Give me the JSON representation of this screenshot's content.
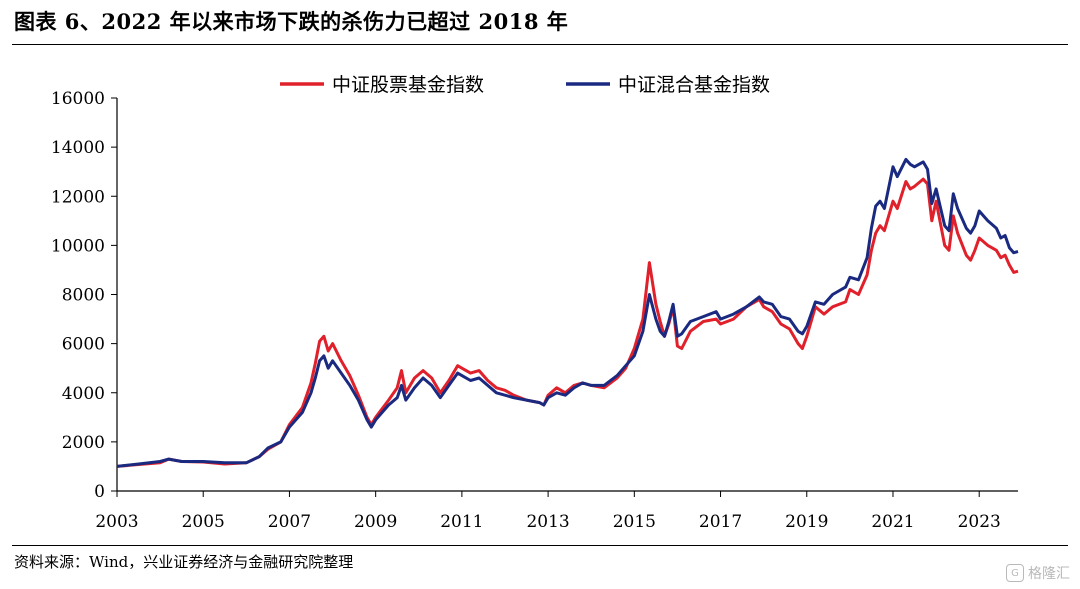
{
  "header": {
    "title": "图表 6、2022 年以来市场下跌的杀伤力已超过 2018 年"
  },
  "footer": {
    "source": "资料来源：Wind，兴业证券经济与金融研究院整理",
    "watermark": "格隆汇"
  },
  "colors": {
    "stock_fund": "#e0202a",
    "mixed_fund": "#1a2a80"
  },
  "chart_data": {
    "type": "line",
    "title": "",
    "xlabel": "",
    "ylabel": "",
    "xlim": [
      2003.0,
      2023.9
    ],
    "ylim": [
      0,
      16000
    ],
    "x_ticks": [
      "2003",
      "2005",
      "2007",
      "2009",
      "2011",
      "2013",
      "2015",
      "2017",
      "2019",
      "2021",
      "2023"
    ],
    "y_ticks": [
      "0",
      "2000",
      "4000",
      "6000",
      "8000",
      "10000",
      "12000",
      "14000",
      "16000"
    ],
    "grid": false,
    "legend_position": "top",
    "series": [
      {
        "name": "中证股票基金指数",
        "color": "#e0202a",
        "points": [
          [
            2003.0,
            1000
          ],
          [
            2003.5,
            1080
          ],
          [
            2004.0,
            1150
          ],
          [
            2004.2,
            1300
          ],
          [
            2004.5,
            1200
          ],
          [
            2005.0,
            1180
          ],
          [
            2005.5,
            1100
          ],
          [
            2006.0,
            1150
          ],
          [
            2006.3,
            1400
          ],
          [
            2006.5,
            1700
          ],
          [
            2006.8,
            2000
          ],
          [
            2007.0,
            2700
          ],
          [
            2007.3,
            3400
          ],
          [
            2007.5,
            4400
          ],
          [
            2007.6,
            5200
          ],
          [
            2007.7,
            6100
          ],
          [
            2007.8,
            6300
          ],
          [
            2007.9,
            5700
          ],
          [
            2008.0,
            6000
          ],
          [
            2008.2,
            5300
          ],
          [
            2008.4,
            4700
          ],
          [
            2008.6,
            3900
          ],
          [
            2008.8,
            3000
          ],
          [
            2008.9,
            2700
          ],
          [
            2009.0,
            3000
          ],
          [
            2009.3,
            3700
          ],
          [
            2009.5,
            4200
          ],
          [
            2009.6,
            4900
          ],
          [
            2009.7,
            4000
          ],
          [
            2009.9,
            4600
          ],
          [
            2010.1,
            4900
          ],
          [
            2010.3,
            4600
          ],
          [
            2010.5,
            4000
          ],
          [
            2010.7,
            4500
          ],
          [
            2010.9,
            5100
          ],
          [
            2011.0,
            5000
          ],
          [
            2011.2,
            4800
          ],
          [
            2011.4,
            4900
          ],
          [
            2011.6,
            4500
          ],
          [
            2011.8,
            4200
          ],
          [
            2012.0,
            4100
          ],
          [
            2012.2,
            3900
          ],
          [
            2012.5,
            3700
          ],
          [
            2012.8,
            3600
          ],
          [
            2012.9,
            3500
          ],
          [
            2013.0,
            3900
          ],
          [
            2013.2,
            4200
          ],
          [
            2013.4,
            4000
          ],
          [
            2013.6,
            4300
          ],
          [
            2013.8,
            4400
          ],
          [
            2014.0,
            4300
          ],
          [
            2014.3,
            4200
          ],
          [
            2014.6,
            4600
          ],
          [
            2014.8,
            5000
          ],
          [
            2015.0,
            5800
          ],
          [
            2015.2,
            7000
          ],
          [
            2015.35,
            9300
          ],
          [
            2015.5,
            7600
          ],
          [
            2015.6,
            6900
          ],
          [
            2015.7,
            6300
          ],
          [
            2015.8,
            6800
          ],
          [
            2015.9,
            7500
          ],
          [
            2016.0,
            5900
          ],
          [
            2016.1,
            5800
          ],
          [
            2016.3,
            6500
          ],
          [
            2016.6,
            6900
          ],
          [
            2016.9,
            7000
          ],
          [
            2017.0,
            6800
          ],
          [
            2017.3,
            7000
          ],
          [
            2017.6,
            7500
          ],
          [
            2017.9,
            7800
          ],
          [
            2018.0,
            7500
          ],
          [
            2018.2,
            7300
          ],
          [
            2018.4,
            6800
          ],
          [
            2018.6,
            6600
          ],
          [
            2018.8,
            6000
          ],
          [
            2018.9,
            5800
          ],
          [
            2019.0,
            6300
          ],
          [
            2019.2,
            7500
          ],
          [
            2019.4,
            7200
          ],
          [
            2019.6,
            7500
          ],
          [
            2019.9,
            7700
          ],
          [
            2020.0,
            8200
          ],
          [
            2020.2,
            8000
          ],
          [
            2020.4,
            8800
          ],
          [
            2020.5,
            9800
          ],
          [
            2020.6,
            10500
          ],
          [
            2020.7,
            10800
          ],
          [
            2020.8,
            10600
          ],
          [
            2021.0,
            11800
          ],
          [
            2021.1,
            11500
          ],
          [
            2021.3,
            12600
          ],
          [
            2021.4,
            12300
          ],
          [
            2021.5,
            12400
          ],
          [
            2021.7,
            12700
          ],
          [
            2021.8,
            12500
          ],
          [
            2021.9,
            11000
          ],
          [
            2022.0,
            11800
          ],
          [
            2022.2,
            10000
          ],
          [
            2022.3,
            9800
          ],
          [
            2022.4,
            11200
          ],
          [
            2022.5,
            10500
          ],
          [
            2022.7,
            9600
          ],
          [
            2022.8,
            9400
          ],
          [
            2022.9,
            9800
          ],
          [
            2023.0,
            10300
          ],
          [
            2023.2,
            10000
          ],
          [
            2023.4,
            9800
          ],
          [
            2023.5,
            9500
          ],
          [
            2023.6,
            9600
          ],
          [
            2023.7,
            9200
          ],
          [
            2023.8,
            8900
          ],
          [
            2023.9,
            8950
          ]
        ]
      },
      {
        "name": "中证混合基金指数",
        "color": "#1a2a80",
        "points": [
          [
            2003.0,
            1000
          ],
          [
            2003.5,
            1100
          ],
          [
            2004.0,
            1200
          ],
          [
            2004.2,
            1300
          ],
          [
            2004.5,
            1200
          ],
          [
            2005.0,
            1200
          ],
          [
            2005.5,
            1150
          ],
          [
            2006.0,
            1150
          ],
          [
            2006.3,
            1400
          ],
          [
            2006.5,
            1750
          ],
          [
            2006.8,
            2000
          ],
          [
            2007.0,
            2600
          ],
          [
            2007.3,
            3200
          ],
          [
            2007.5,
            4000
          ],
          [
            2007.6,
            4600
          ],
          [
            2007.7,
            5300
          ],
          [
            2007.8,
            5500
          ],
          [
            2007.9,
            5000
          ],
          [
            2008.0,
            5300
          ],
          [
            2008.2,
            4800
          ],
          [
            2008.4,
            4300
          ],
          [
            2008.6,
            3700
          ],
          [
            2008.8,
            2900
          ],
          [
            2008.9,
            2600
          ],
          [
            2009.0,
            2900
          ],
          [
            2009.3,
            3500
          ],
          [
            2009.5,
            3800
          ],
          [
            2009.6,
            4300
          ],
          [
            2009.7,
            3700
          ],
          [
            2009.9,
            4200
          ],
          [
            2010.1,
            4600
          ],
          [
            2010.3,
            4300
          ],
          [
            2010.5,
            3800
          ],
          [
            2010.7,
            4300
          ],
          [
            2010.9,
            4800
          ],
          [
            2011.0,
            4700
          ],
          [
            2011.2,
            4500
          ],
          [
            2011.4,
            4600
          ],
          [
            2011.6,
            4300
          ],
          [
            2011.8,
            4000
          ],
          [
            2012.0,
            3900
          ],
          [
            2012.2,
            3800
          ],
          [
            2012.5,
            3700
          ],
          [
            2012.8,
            3600
          ],
          [
            2012.9,
            3500
          ],
          [
            2013.0,
            3800
          ],
          [
            2013.2,
            4000
          ],
          [
            2013.4,
            3900
          ],
          [
            2013.6,
            4200
          ],
          [
            2013.8,
            4400
          ],
          [
            2014.0,
            4300
          ],
          [
            2014.3,
            4300
          ],
          [
            2014.6,
            4700
          ],
          [
            2014.8,
            5100
          ],
          [
            2015.0,
            5500
          ],
          [
            2015.2,
            6500
          ],
          [
            2015.35,
            8000
          ],
          [
            2015.5,
            7000
          ],
          [
            2015.6,
            6500
          ],
          [
            2015.7,
            6300
          ],
          [
            2015.8,
            6900
          ],
          [
            2015.9,
            7600
          ],
          [
            2016.0,
            6300
          ],
          [
            2016.1,
            6400
          ],
          [
            2016.3,
            6900
          ],
          [
            2016.6,
            7100
          ],
          [
            2016.9,
            7300
          ],
          [
            2017.0,
            7000
          ],
          [
            2017.3,
            7200
          ],
          [
            2017.6,
            7500
          ],
          [
            2017.9,
            7900
          ],
          [
            2018.0,
            7700
          ],
          [
            2018.2,
            7600
          ],
          [
            2018.4,
            7100
          ],
          [
            2018.6,
            7000
          ],
          [
            2018.8,
            6500
          ],
          [
            2018.9,
            6400
          ],
          [
            2019.0,
            6700
          ],
          [
            2019.2,
            7700
          ],
          [
            2019.4,
            7600
          ],
          [
            2019.6,
            8000
          ],
          [
            2019.9,
            8300
          ],
          [
            2020.0,
            8700
          ],
          [
            2020.2,
            8600
          ],
          [
            2020.4,
            9500
          ],
          [
            2020.5,
            10700
          ],
          [
            2020.6,
            11600
          ],
          [
            2020.7,
            11800
          ],
          [
            2020.8,
            11500
          ],
          [
            2021.0,
            13200
          ],
          [
            2021.1,
            12800
          ],
          [
            2021.3,
            13500
          ],
          [
            2021.4,
            13300
          ],
          [
            2021.5,
            13200
          ],
          [
            2021.7,
            13400
          ],
          [
            2021.8,
            13100
          ],
          [
            2021.9,
            11700
          ],
          [
            2022.0,
            12300
          ],
          [
            2022.2,
            10800
          ],
          [
            2022.3,
            10600
          ],
          [
            2022.4,
            12100
          ],
          [
            2022.5,
            11500
          ],
          [
            2022.7,
            10700
          ],
          [
            2022.8,
            10500
          ],
          [
            2022.9,
            10800
          ],
          [
            2023.0,
            11400
          ],
          [
            2023.2,
            11000
          ],
          [
            2023.4,
            10700
          ],
          [
            2023.5,
            10300
          ],
          [
            2023.6,
            10400
          ],
          [
            2023.7,
            9900
          ],
          [
            2023.8,
            9700
          ],
          [
            2023.9,
            9750
          ]
        ]
      }
    ]
  }
}
